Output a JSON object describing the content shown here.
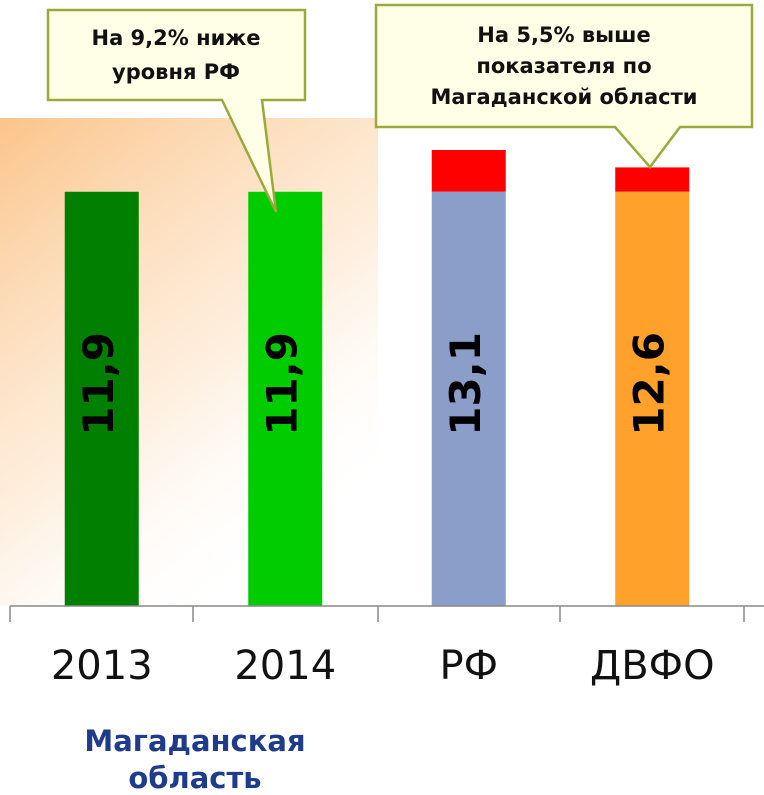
{
  "chart_data": {
    "type": "bar",
    "categories": [
      "2013",
      "2014",
      "РФ",
      "ДВФО"
    ],
    "values": [
      11.9,
      11.9,
      13.1,
      12.6
    ],
    "value_labels": [
      "11,9",
      "11,9",
      "13,1",
      "12,6"
    ],
    "colors": [
      "#007f00",
      "#00cc00",
      "#8b9dc9",
      "#ffa12b"
    ],
    "excess_color": "#ff0000",
    "ylim": [
      0,
      13.1
    ],
    "group_label": [
      "Магаданская",
      "область"
    ],
    "annotations": [
      {
        "lines": [
          "На 9,2% ниже",
          "уровня РФ"
        ]
      },
      {
        "lines": [
          "На 5,5% выше",
          "показателя по",
          "Магаданской области"
        ]
      }
    ]
  }
}
